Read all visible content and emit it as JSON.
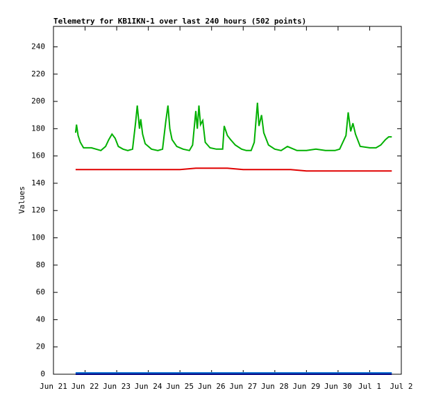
{
  "chart_data": {
    "type": "line",
    "title": "Telemetry for KB1IKN-1 over last 240 hours (502 points)",
    "y_label": "Values",
    "xlim": [
      0,
      11
    ],
    "xticks": [
      {
        "value": 0,
        "label": "Jun 21"
      },
      {
        "value": 1,
        "label": "Jun 22"
      },
      {
        "value": 2,
        "label": "Jun 23"
      },
      {
        "value": 3,
        "label": "Jun 24"
      },
      {
        "value": 4,
        "label": "Jun 25"
      },
      {
        "value": 5,
        "label": "Jun 26"
      },
      {
        "value": 6,
        "label": "Jun 27"
      },
      {
        "value": 7,
        "label": "Jun 28"
      },
      {
        "value": 8,
        "label": "Jun 29"
      },
      {
        "value": 9,
        "label": "Jun 30"
      },
      {
        "value": 10,
        "label": "Jul 1"
      },
      {
        "value": 11,
        "label": "Jul 2"
      }
    ],
    "ylim": [
      0,
      255
    ],
    "yticks": [
      0,
      20,
      40,
      60,
      80,
      100,
      120,
      140,
      160,
      180,
      200,
      220,
      240
    ],
    "series": [
      {
        "color": "#00b000",
        "x": [
          0.7,
          0.73,
          0.78,
          0.85,
          0.95,
          1.2,
          1.5,
          1.65,
          1.75,
          1.85,
          1.95,
          2.05,
          2.2,
          2.35,
          2.5,
          2.6,
          2.65,
          2.72,
          2.76,
          2.82,
          2.9,
          3.1,
          3.3,
          3.45,
          3.55,
          3.62,
          3.68,
          3.75,
          3.9,
          4.1,
          4.3,
          4.4,
          4.5,
          4.55,
          4.6,
          4.65,
          4.72,
          4.8,
          4.95,
          5.15,
          5.35,
          5.4,
          5.5,
          5.6,
          5.75,
          5.95,
          6.1,
          6.25,
          6.35,
          6.45,
          6.5,
          6.58,
          6.65,
          6.8,
          7.0,
          7.2,
          7.4,
          7.5,
          7.7,
          8.0,
          8.3,
          8.6,
          8.9,
          9.05,
          9.25,
          9.32,
          9.4,
          9.47,
          9.55,
          9.7,
          10.0,
          10.2,
          10.35,
          10.5,
          10.6,
          10.7
        ],
        "values": [
          177,
          183,
          175,
          170,
          166,
          166,
          164,
          167,
          172,
          176,
          173,
          167,
          165,
          164,
          165,
          185,
          197,
          180,
          187,
          176,
          169,
          165,
          164,
          165,
          185,
          197,
          180,
          172,
          167,
          165,
          164,
          168,
          193,
          180,
          197,
          183,
          186,
          170,
          166,
          165,
          165,
          182,
          175,
          172,
          168,
          165,
          164,
          164,
          170,
          199,
          182,
          190,
          177,
          168,
          165,
          164,
          167,
          166,
          164,
          164,
          165,
          164,
          164,
          165,
          175,
          192,
          178,
          184,
          176,
          167,
          166,
          166,
          168,
          172,
          174,
          174
        ]
      },
      {
        "color": "#e00000",
        "x": [
          0.7,
          1.5,
          2.5,
          3.2,
          4.0,
          4.5,
          5.0,
          5.5,
          6.0,
          6.5,
          7.0,
          7.5,
          8.0,
          8.5,
          9.0,
          9.5,
          10.0,
          10.7
        ],
        "values": [
          150,
          150,
          150,
          150,
          150,
          151,
          151,
          151,
          150,
          150,
          150,
          150,
          149,
          149,
          149,
          149,
          149,
          149
        ]
      },
      {
        "color": "#1070d0",
        "x": [
          0.7,
          1.5,
          2.5,
          3.5,
          4.5,
          5.5,
          6.5,
          7.5,
          8.5,
          9.5,
          10.7
        ],
        "values": [
          1,
          1,
          1,
          1,
          1,
          1,
          1,
          1,
          1,
          1,
          1
        ]
      },
      {
        "color": "#000080",
        "x": [
          0.7,
          10.7
        ],
        "values": [
          0,
          0
        ]
      }
    ]
  }
}
